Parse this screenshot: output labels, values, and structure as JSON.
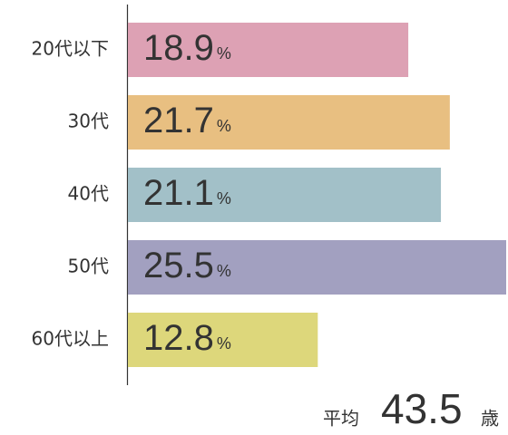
{
  "chart_data": {
    "type": "bar",
    "orientation": "horizontal",
    "categories": [
      "20代以下",
      "30代",
      "40代",
      "50代",
      "60代以上"
    ],
    "values": [
      18.9,
      21.7,
      21.1,
      25.5,
      12.8
    ],
    "colors": [
      "#dda1b4",
      "#e8bf81",
      "#a2c0c8",
      "#a2a0c0",
      "#ddd77b"
    ],
    "unit": "%",
    "average": {
      "label": "平均",
      "value": 43.5,
      "unit": "歳"
    }
  }
}
